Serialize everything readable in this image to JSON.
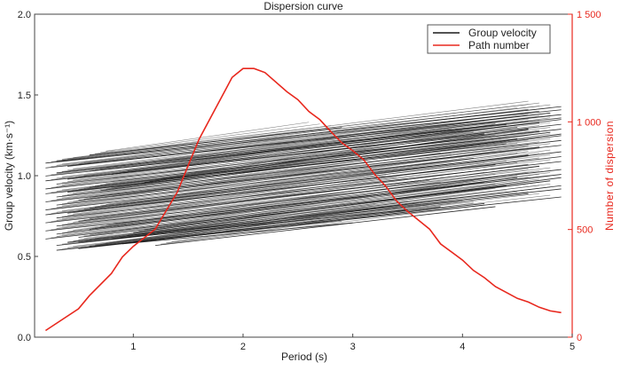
{
  "chart_data": {
    "type": "line",
    "title": "Dispersion curve",
    "xlabel": "Period (s)",
    "ylabel": "Group velocity (km·s⁻¹)",
    "y2label": "Number of dispersion",
    "xlim": [
      0.1,
      5
    ],
    "ylim": [
      0,
      2
    ],
    "y2lim": [
      0,
      1500
    ],
    "xticks": [
      "1",
      "2",
      "3",
      "4",
      "5"
    ],
    "yticks": [
      "0.0",
      "0.5",
      "1.0",
      "1.5",
      "2.0"
    ],
    "y2ticks": [
      "0",
      "500",
      "1 000",
      "1 500"
    ],
    "grid": false,
    "legend": {
      "placement": "top-right",
      "entries": [
        "Group velocity",
        "Path number"
      ]
    },
    "colors": {
      "group": "#1a1a1a",
      "path": "#e8281e",
      "axis": "#333333"
    },
    "series": [
      {
        "name": "Path number",
        "axis": "right",
        "x": [
          0.2,
          0.5,
          0.6,
          0.8,
          0.9,
          1.0,
          1.2,
          1.4,
          1.5,
          1.6,
          1.7,
          1.9,
          2.0,
          2.1,
          2.2,
          2.4,
          2.5,
          2.6,
          2.7,
          2.8,
          2.9,
          3.0,
          3.1,
          3.2,
          3.3,
          3.4,
          3.5,
          3.7,
          3.8,
          4.0,
          4.1,
          4.2,
          4.3,
          4.5,
          4.6,
          4.7,
          4.8,
          4.9
        ],
        "y": [
          31,
          132,
          193,
          296,
          372,
          422,
          502,
          673,
          797,
          920,
          1016,
          1206,
          1248,
          1248,
          1229,
          1140,
          1103,
          1048,
          1010,
          955,
          903,
          866,
          824,
          756,
          701,
          632,
          584,
          502,
          433,
          358,
          310,
          276,
          235,
          180,
          163,
          139,
          122,
          114
        ]
      },
      {
        "name": "Group velocity",
        "axis": "left",
        "segments_t0_v0_t1_v1": [
          [
            0.3,
            0.55,
            4.9,
            0.88
          ],
          [
            0.5,
            0.56,
            4.2,
            0.84
          ],
          [
            0.3,
            0.58,
            4.6,
            0.9
          ],
          [
            0.6,
            0.57,
            3.8,
            0.82
          ],
          [
            0.4,
            0.6,
            4.9,
            0.93
          ],
          [
            0.2,
            0.62,
            4.4,
            0.95
          ],
          [
            0.5,
            0.63,
            4.8,
            0.98
          ],
          [
            0.3,
            0.65,
            4.0,
            0.95
          ],
          [
            0.2,
            0.67,
            4.9,
            1.02
          ],
          [
            0.6,
            0.68,
            4.5,
            1.0
          ],
          [
            0.3,
            0.7,
            4.9,
            1.05
          ],
          [
            0.2,
            0.72,
            3.6,
            0.98
          ],
          [
            0.5,
            0.73,
            4.7,
            1.07
          ],
          [
            0.3,
            0.75,
            4.9,
            1.1
          ],
          [
            0.2,
            0.77,
            4.3,
            1.08
          ],
          [
            0.4,
            0.78,
            4.9,
            1.13
          ],
          [
            0.2,
            0.8,
            4.6,
            1.14
          ],
          [
            0.6,
            0.81,
            4.9,
            1.16
          ],
          [
            0.3,
            0.83,
            4.1,
            1.12
          ],
          [
            0.2,
            0.85,
            4.9,
            1.2
          ],
          [
            0.5,
            0.86,
            4.7,
            1.19
          ],
          [
            0.3,
            0.88,
            4.9,
            1.23
          ],
          [
            0.2,
            0.9,
            4.4,
            1.21
          ],
          [
            0.4,
            0.91,
            4.9,
            1.26
          ],
          [
            0.2,
            0.93,
            4.8,
            1.28
          ],
          [
            0.6,
            0.94,
            4.5,
            1.24
          ],
          [
            0.3,
            0.96,
            4.9,
            1.3
          ],
          [
            0.2,
            0.98,
            4.2,
            1.27
          ],
          [
            0.4,
            0.99,
            4.9,
            1.33
          ],
          [
            0.2,
            1.01,
            4.7,
            1.34
          ],
          [
            0.3,
            1.03,
            4.9,
            1.37
          ],
          [
            0.6,
            1.04,
            4.4,
            1.33
          ],
          [
            0.2,
            1.06,
            4.9,
            1.39
          ],
          [
            0.4,
            1.07,
            4.8,
            1.4
          ],
          [
            0.2,
            1.09,
            4.9,
            1.42
          ],
          [
            0.3,
            1.1,
            4.9,
            1.44
          ],
          [
            0.6,
            1.14,
            2.9,
            1.31
          ],
          [
            0.5,
            0.6,
            3.5,
            0.8
          ],
          [
            0.8,
            0.62,
            4.9,
            0.95
          ],
          [
            1.0,
            0.66,
            4.9,
            1.0
          ],
          [
            0.9,
            0.59,
            3.0,
            0.72
          ],
          [
            1.2,
            0.58,
            4.3,
            0.82
          ],
          [
            0.7,
            0.92,
            4.9,
            1.27
          ],
          [
            1.1,
            0.97,
            4.6,
            1.3
          ],
          [
            0.8,
            1.02,
            4.9,
            1.36
          ]
        ]
      }
    ]
  }
}
